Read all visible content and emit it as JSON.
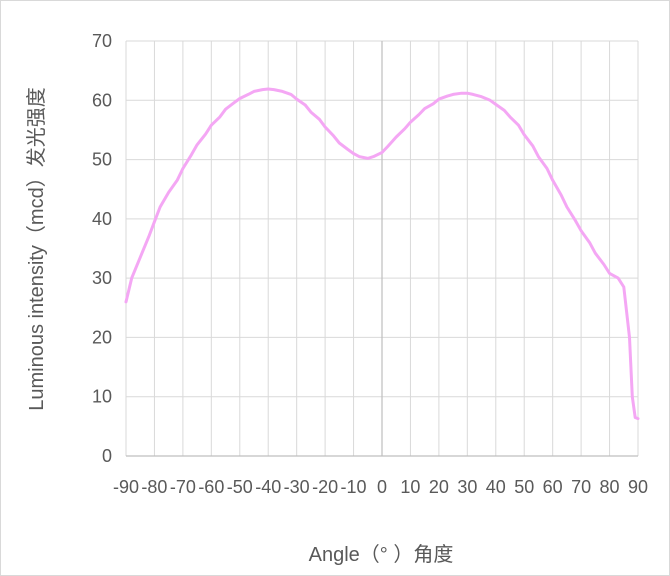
{
  "chart_data": {
    "type": "line",
    "title": "",
    "xlabel": "Angle（° ）角度",
    "ylabel": "Luminous intensity（mcd）发光强度",
    "xlim": [
      -90,
      90
    ],
    "ylim": [
      0,
      70
    ],
    "x_ticks": [
      -90,
      -80,
      -70,
      -60,
      -50,
      -40,
      -30,
      -20,
      -10,
      0,
      10,
      20,
      30,
      40,
      50,
      60,
      70,
      80,
      90
    ],
    "y_ticks": [
      0,
      10,
      20,
      30,
      40,
      50,
      60,
      70
    ],
    "grid": true,
    "legend": "none",
    "series": [
      {
        "color": "#f4a7f4",
        "x": [
          -90,
          -88,
          -85,
          -82,
          -80,
          -78,
          -75,
          -72,
          -70,
          -67,
          -65,
          -62,
          -60,
          -57,
          -55,
          -52,
          -50,
          -47,
          -45,
          -42,
          -40,
          -38,
          -35,
          -32,
          -30,
          -27,
          -25,
          -22,
          -20,
          -17,
          -15,
          -12,
          -10,
          -8,
          -5,
          -3,
          0,
          2,
          5,
          8,
          10,
          13,
          15,
          18,
          20,
          23,
          25,
          28,
          30,
          32,
          35,
          38,
          40,
          43,
          45,
          48,
          50,
          53,
          55,
          58,
          60,
          63,
          65,
          68,
          70,
          73,
          75,
          78,
          80,
          83,
          85,
          87,
          88,
          89,
          90
        ],
        "y": [
          26,
          30,
          33.5,
          37,
          39.5,
          42,
          44.5,
          46.5,
          48.5,
          50.8,
          52.5,
          54.3,
          55.8,
          57.2,
          58.5,
          59.6,
          60.3,
          61,
          61.5,
          61.8,
          61.9,
          61.8,
          61.5,
          61,
          60.2,
          59.2,
          58,
          56.8,
          55.5,
          54,
          52.8,
          51.7,
          51,
          50.5,
          50.2,
          50.5,
          51.2,
          52.2,
          53.8,
          55.2,
          56.3,
          57.6,
          58.6,
          59.4,
          60.2,
          60.7,
          61,
          61.2,
          61.2,
          61,
          60.6,
          60,
          59.3,
          58.3,
          57.2,
          55.8,
          54.2,
          52.3,
          50.5,
          48.5,
          46.5,
          44,
          42,
          39.7,
          38,
          36,
          34.2,
          32.3,
          30.8,
          30,
          28.5,
          20,
          10,
          6.5,
          6.3
        ]
      }
    ]
  }
}
